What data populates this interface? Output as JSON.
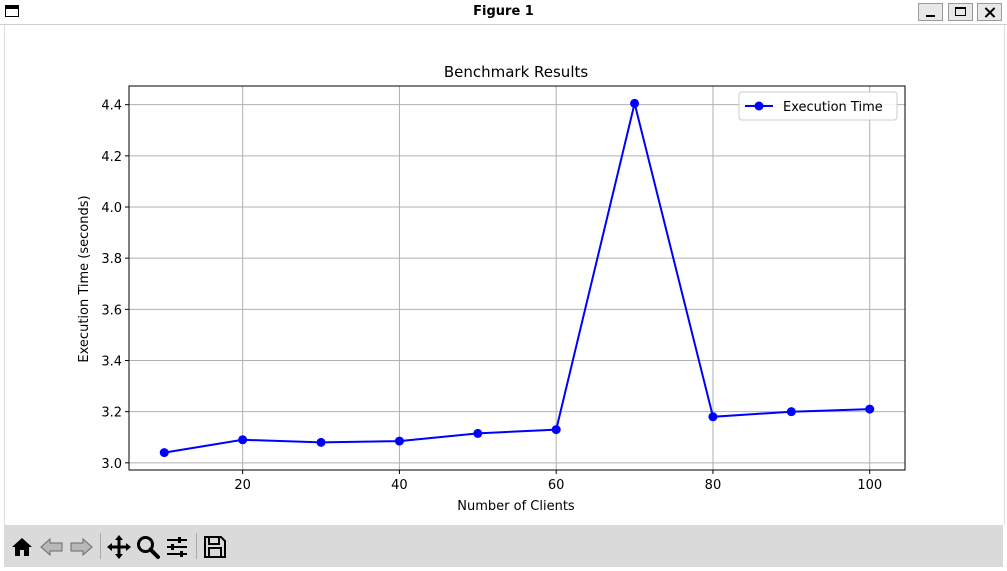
{
  "window": {
    "title": "Figure 1"
  },
  "toolbar": {
    "buttons": [
      {
        "name": "home-button",
        "icon": "home-icon"
      },
      {
        "name": "back-button",
        "icon": "back-arrow-icon"
      },
      {
        "name": "forward-button",
        "icon": "forward-arrow-icon"
      },
      {
        "name": "pan-button",
        "icon": "move-icon"
      },
      {
        "name": "zoom-button",
        "icon": "magnifier-icon"
      },
      {
        "name": "configure-subplots-button",
        "icon": "sliders-icon"
      },
      {
        "name": "save-button",
        "icon": "floppy-disk-icon"
      }
    ]
  },
  "chart_data": {
    "type": "line",
    "title": "Benchmark Results",
    "xlabel": "Number of Clients",
    "ylabel": "Execution Time (seconds)",
    "x": [
      10,
      20,
      30,
      40,
      50,
      60,
      70,
      80,
      90,
      100
    ],
    "series": [
      {
        "name": "Execution Time",
        "values": [
          3.04,
          3.09,
          3.08,
          3.085,
          3.115,
          3.13,
          4.405,
          3.18,
          3.2,
          3.21
        ],
        "color": "#0000ff",
        "marker": "circle"
      }
    ],
    "xticks": [
      20,
      40,
      60,
      80,
      100
    ],
    "yticks": [
      3.0,
      3.2,
      3.4,
      3.6,
      3.8,
      4.0,
      4.2,
      4.4
    ],
    "xlim": [
      5.5,
      104.5
    ],
    "ylim": [
      2.972,
      4.473
    ],
    "grid": true,
    "legend": "top-right"
  }
}
